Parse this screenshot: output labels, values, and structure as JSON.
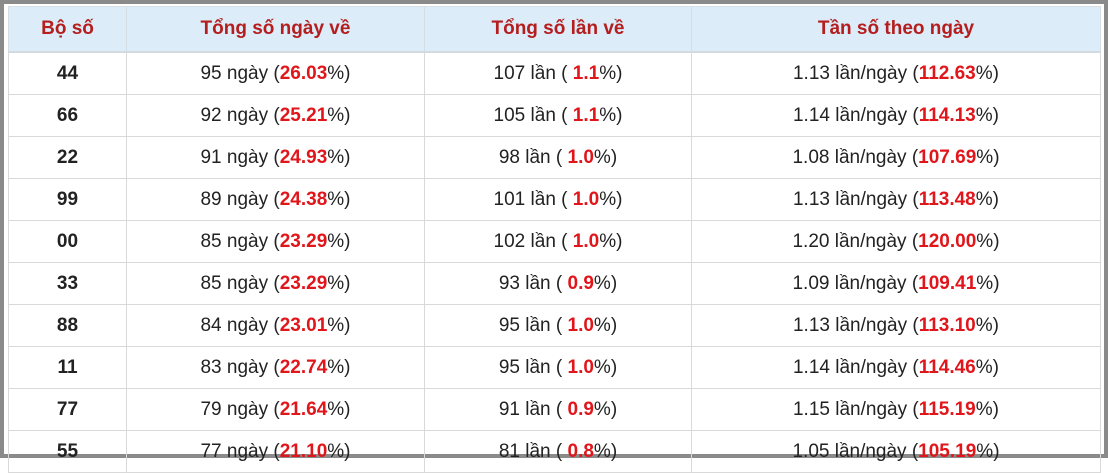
{
  "table": {
    "headers": [
      "Bộ số",
      "Tổng số ngày về",
      "Tổng số lần về",
      "Tần số theo ngày"
    ],
    "rows": [
      [
        "44",
        [
          "95 ngày (",
          "26.03",
          "%)"
        ],
        [
          "107 lần ( ",
          "1.1",
          "%)"
        ],
        [
          "1.13 lần/ngày (",
          "112.63",
          "%)"
        ]
      ],
      [
        "66",
        [
          "92 ngày (",
          "25.21",
          "%)"
        ],
        [
          "105 lần ( ",
          "1.1",
          "%)"
        ],
        [
          "1.14 lần/ngày (",
          "114.13",
          "%)"
        ]
      ],
      [
        "22",
        [
          "91 ngày (",
          "24.93",
          "%)"
        ],
        [
          "98 lần ( ",
          "1.0",
          "%)"
        ],
        [
          "1.08 lần/ngày (",
          "107.69",
          "%)"
        ]
      ],
      [
        "99",
        [
          "89 ngày (",
          "24.38",
          "%)"
        ],
        [
          "101 lần ( ",
          "1.0",
          "%)"
        ],
        [
          "1.13 lần/ngày (",
          "113.48",
          "%)"
        ]
      ],
      [
        "00",
        [
          "85 ngày (",
          "23.29",
          "%)"
        ],
        [
          "102 lần ( ",
          "1.0",
          "%)"
        ],
        [
          "1.20 lần/ngày (",
          "120.00",
          "%)"
        ]
      ],
      [
        "33",
        [
          "85 ngày (",
          "23.29",
          "%)"
        ],
        [
          "93 lần ( ",
          "0.9",
          "%)"
        ],
        [
          "1.09 lần/ngày (",
          "109.41",
          "%)"
        ]
      ],
      [
        "88",
        [
          "84 ngày (",
          "23.01",
          "%)"
        ],
        [
          "95 lần ( ",
          "1.0",
          "%)"
        ],
        [
          "1.13 lần/ngày (",
          "113.10",
          "%)"
        ]
      ],
      [
        "11",
        [
          "83 ngày (",
          "22.74",
          "%)"
        ],
        [
          "95 lần ( ",
          "1.0",
          "%)"
        ],
        [
          "1.14 lần/ngày (",
          "114.46",
          "%)"
        ]
      ],
      [
        "77",
        [
          "79 ngày (",
          "21.64",
          "%)"
        ],
        [
          "91 lần ( ",
          "0.9",
          "%)"
        ],
        [
          "1.15 lần/ngày (",
          "115.19",
          "%)"
        ]
      ],
      [
        "55",
        [
          "77 ngày (",
          "21.10",
          "%)"
        ],
        [
          "81 lần ( ",
          "0.8",
          "%)"
        ],
        [
          "1.05 lần/ngày (",
          "105.19",
          "%)"
        ]
      ]
    ]
  }
}
